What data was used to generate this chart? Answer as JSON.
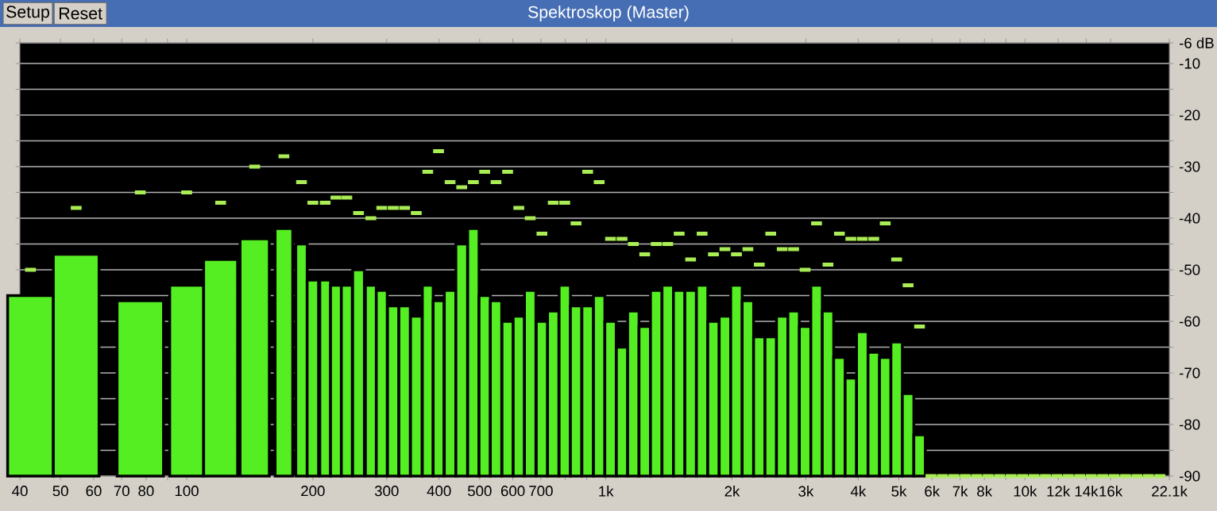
{
  "chart_data": {
    "type": "bar",
    "title": "Spektroskop (Master)",
    "annotations": [
      "Setup",
      "Reset"
    ],
    "x": [
      42.4,
      54.5,
      77.5,
      100,
      120.5,
      145.3,
      170.6,
      187.9,
      200,
      214,
      227,
      241,
      257,
      275,
      292,
      311,
      331,
      353,
      376,
      399,
      425,
      453,
      483,
      514,
      547,
      583,
      620,
      660,
      704,
      749,
      798,
      849,
      905,
      964,
      1026,
      1093,
      1163,
      1238,
      1319,
      1405,
      1496,
      1593,
      1697,
      1806,
      1924,
      2049,
      2182,
      2323,
      2474,
      2635,
      2805,
      2988,
      3182,
      3388,
      3608,
      3842,
      4091,
      4357,
      4640,
      4940,
      5261,
      5603,
      5966,
      6353,
      6766,
      7204,
      7672,
      8170,
      8701,
      9265,
      9866,
      10507,
      11189,
      11914,
      12688,
      13512,
      14388,
      15322,
      16316,
      17375,
      18503,
      19704,
      20983
    ],
    "series": [
      {
        "color": "#55ee22",
        "values": [
          35,
          43,
          34,
          37,
          42,
          46,
          48,
          45,
          38,
          38,
          37,
          37,
          40,
          37,
          36,
          33,
          33,
          31,
          37,
          34,
          36,
          45,
          48,
          35,
          34,
          30,
          31,
          36,
          30,
          32,
          37,
          33,
          33,
          35,
          30,
          25,
          32,
          29,
          36,
          37,
          36,
          36,
          37,
          30,
          31,
          37,
          34,
          27,
          27,
          31,
          32,
          29,
          37,
          32,
          23,
          19,
          28,
          24,
          23,
          26,
          16,
          8,
          null,
          null,
          null,
          null,
          null,
          null,
          null,
          null,
          null,
          null,
          null,
          null,
          null,
          null,
          null,
          null,
          null,
          null,
          null,
          null,
          null
        ],
        "base": [
          -90,
          -90,
          -90,
          -90,
          -90,
          -90,
          -90,
          -90,
          -90,
          -90,
          -90,
          -90,
          -90,
          -90,
          -90,
          -90,
          -90,
          -90,
          -90,
          -90,
          -90,
          -90,
          -90,
          -90,
          -90,
          -90,
          -90,
          -90,
          -90,
          -90,
          -90,
          -90,
          -90,
          -90,
          -90,
          -90,
          -90,
          -90,
          -90,
          -90,
          -90,
          -90,
          -90,
          -90,
          -90,
          -90,
          -90,
          -90,
          -90,
          -90,
          -90,
          -90,
          -90,
          -90,
          -90,
          -90,
          -90,
          -90,
          -90,
          -90,
          -90,
          -90,
          null,
          null,
          null,
          null,
          null,
          null,
          null,
          null,
          null,
          null,
          null,
          null,
          null,
          null,
          null,
          null,
          null,
          null,
          null,
          null,
          null
        ]
      },
      {
        "type": "scatter",
        "marker": "square",
        "color": "#aaee55",
        "values": [
          -50,
          -38,
          -35,
          -35,
          -37,
          -30,
          -28,
          -33,
          -37,
          -37,
          -36,
          -36,
          -39,
          -40,
          -38,
          -38,
          -38,
          -39,
          -31,
          -27,
          -33,
          -34,
          -33,
          -31,
          -33,
          -31,
          -38,
          -40,
          -43,
          -37,
          -37,
          -41,
          -31,
          -33,
          -44,
          -44,
          -45,
          -47,
          -45,
          -45,
          -43,
          -48,
          -43,
          -47,
          -46,
          -47,
          -46,
          -49,
          -43,
          -46,
          -46,
          -50,
          -41,
          -49,
          -43,
          -44,
          -44,
          -44,
          -41,
          -48,
          -53,
          -61,
          -90,
          -90,
          -90,
          -90,
          -90,
          -90,
          -90,
          -90,
          -90,
          -90,
          -90,
          -90,
          -90,
          -90,
          -90,
          -90,
          -90,
          -90,
          -90,
          -90,
          -90
        ]
      }
    ],
    "xlim": [
      40,
      22100
    ],
    "ylim": [
      -90,
      -6
    ],
    "log": "x",
    "grid": "y",
    "xticks": [
      40,
      50,
      60,
      70,
      80,
      {
        "value": 90,
        "label": null
      },
      100,
      200,
      300,
      400,
      500,
      600,
      700,
      {
        "value": 800,
        "label": null
      },
      {
        "value": 900,
        "label": null
      },
      {
        "value": 1000,
        "label": "1k"
      },
      {
        "value": 2000,
        "label": "2k"
      },
      {
        "value": 3000,
        "label": "3k"
      },
      {
        "value": 4000,
        "label": "4k"
      },
      {
        "value": 5000,
        "label": "5k"
      },
      {
        "value": 6000,
        "label": "6k"
      },
      {
        "value": 7000,
        "label": "7k"
      },
      {
        "value": 8000,
        "label": "8k"
      },
      {
        "value": 9000,
        "label": null
      },
      {
        "value": 10000,
        "label": "10k"
      },
      {
        "value": 12000,
        "label": "12k"
      },
      {
        "value": 14000,
        "label": "14k"
      },
      {
        "value": 16000,
        "label": "16k"
      },
      {
        "value": 22100,
        "label": "22.1k"
      }
    ],
    "yticks": [
      {
        "value": -6,
        "label": "-6 dB"
      },
      -10,
      {
        "value": -15,
        "label": null
      },
      -20,
      {
        "value": -25,
        "label": null
      },
      -30,
      {
        "value": -35,
        "label": null
      },
      -40,
      {
        "value": -45,
        "label": null
      },
      -50,
      {
        "value": -55,
        "label": null
      },
      -60,
      {
        "value": -65,
        "label": null
      },
      -70,
      {
        "value": -75,
        "label": null
      },
      -80,
      {
        "value": -85,
        "label": null
      },
      -90
    ]
  }
}
